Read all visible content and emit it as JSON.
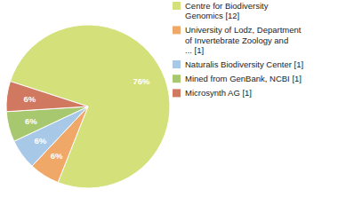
{
  "chart_data": {
    "type": "pie",
    "categories": [
      "Centre for Biodiversity\nGenomics [12]",
      "University of Lodz, Department\nof Invertebrate Zoology and\n... [1]",
      "Naturalis Biodiversity Center [1]",
      "Mined from GenBank, NCBI [1]",
      "Microsynth AG [1]"
    ],
    "values": [
      76,
      6,
      6,
      6,
      6
    ],
    "value_labels": [
      "76%",
      "6%",
      "6%",
      "6%",
      "6%"
    ],
    "colors": [
      "#d4e07a",
      "#f0a868",
      "#a8c8e8",
      "#a8c870",
      "#d07860"
    ],
    "data_labels": true,
    "legend": "right"
  }
}
